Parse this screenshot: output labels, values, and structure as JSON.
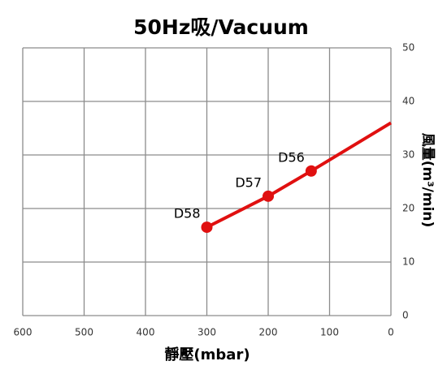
{
  "chart_data": {
    "type": "line",
    "title": "50Hz吸/Vacuum",
    "x_label": "靜壓(mbar)",
    "y_label": "風量(m³/min)",
    "x": [
      300,
      200,
      130,
      0
    ],
    "series": [
      {
        "color": "#e01010",
        "values": [
          16.5,
          22.3,
          27,
          36
        ],
        "point_labels": [
          "D58",
          "D57",
          "D56",
          null
        ]
      }
    ],
    "xlim": [
      600,
      0
    ],
    "xticks": [
      600,
      500,
      400,
      300,
      200,
      100,
      0
    ],
    "ylim": [
      0,
      50
    ],
    "yticks": [
      0,
      10,
      20,
      30,
      40,
      50
    ],
    "y_axis_side": "right",
    "grid": true
  }
}
